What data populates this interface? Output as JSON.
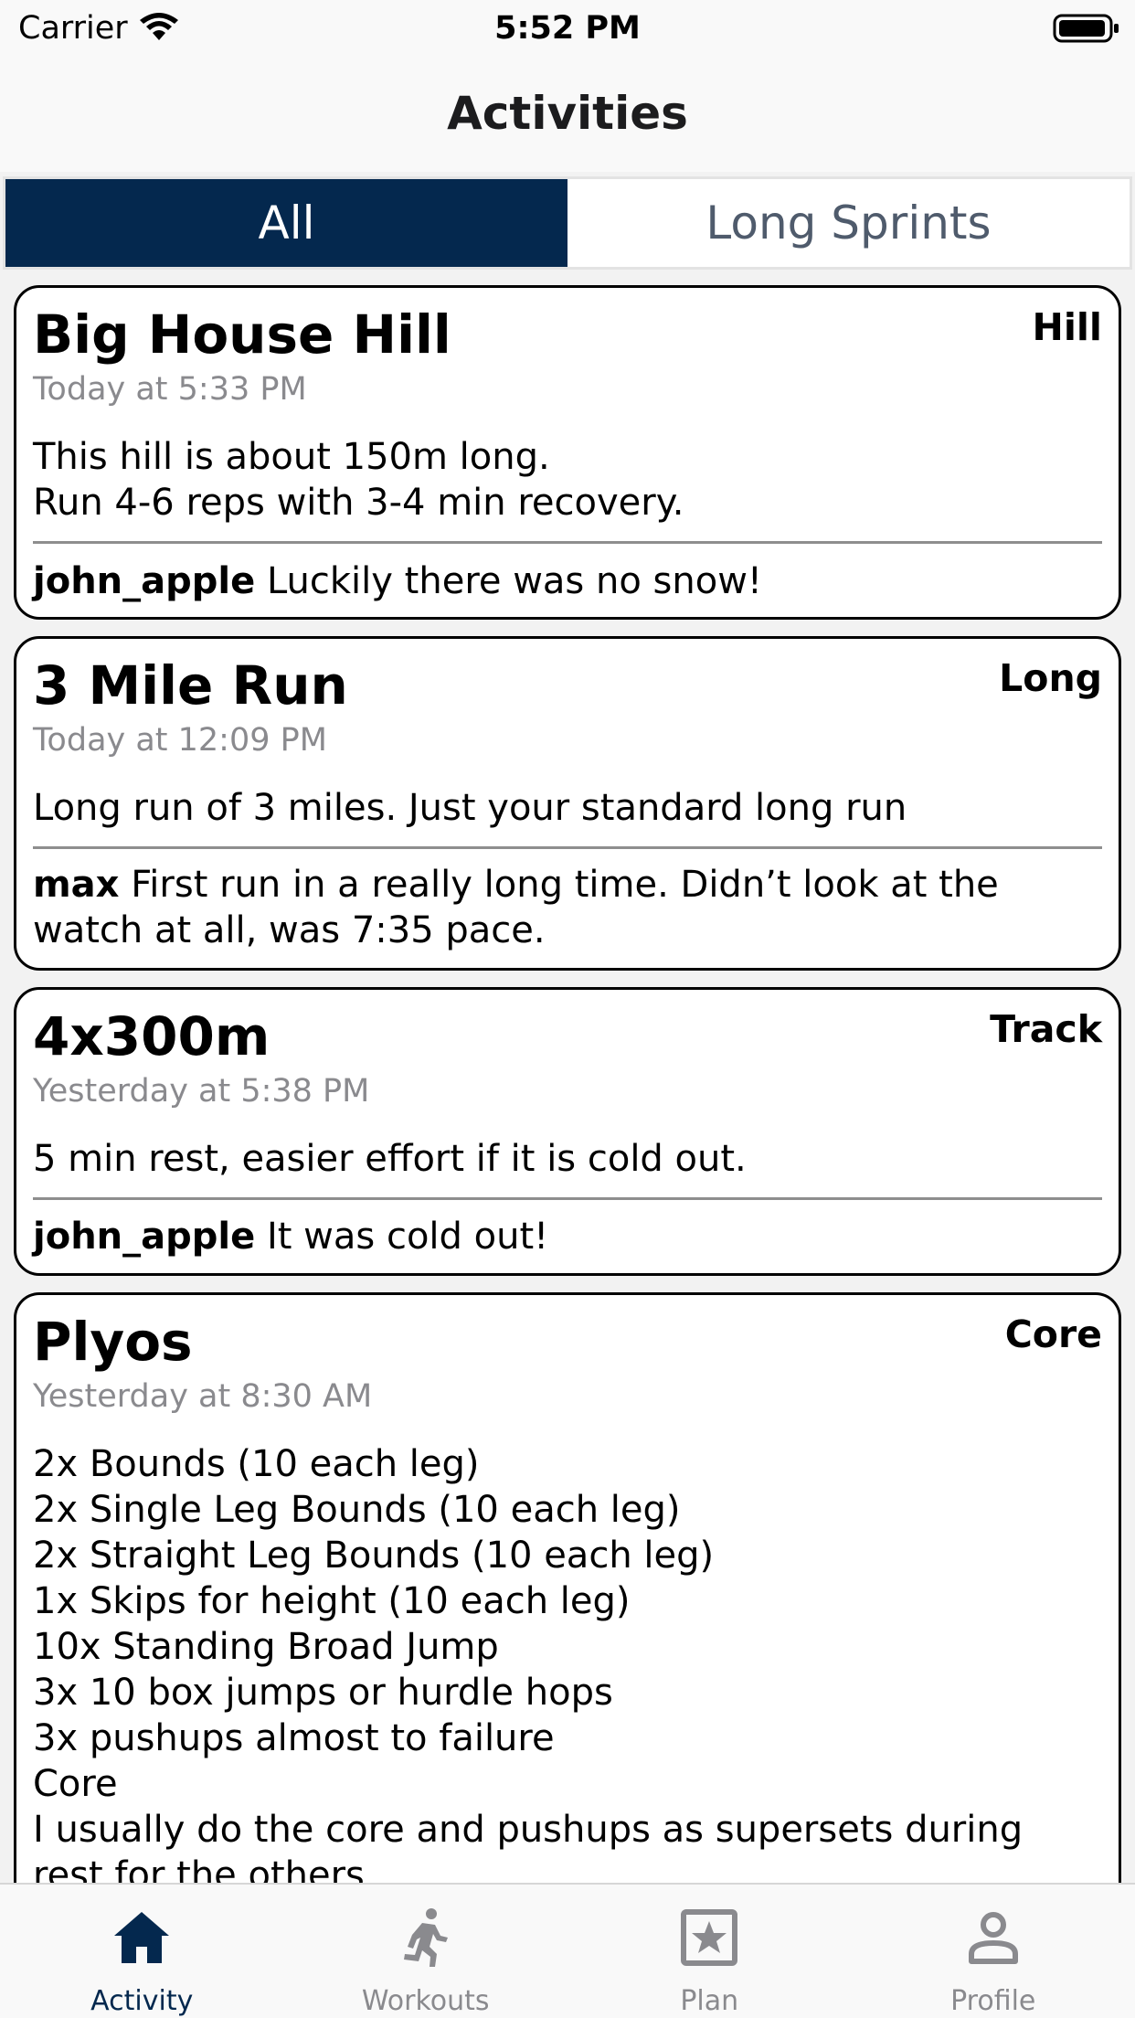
{
  "status_bar": {
    "carrier": "Carrier",
    "time": "5:52 PM"
  },
  "nav": {
    "title": "Activities"
  },
  "segments": [
    {
      "label": "All",
      "selected": true
    },
    {
      "label": "Long Sprints",
      "selected": false
    }
  ],
  "activities": [
    {
      "title": "Big House Hill",
      "tag": "Hill",
      "time": "Today at 5:33 PM",
      "description": "This hill is about 150m long.\nRun 4-6 reps with 3-4 min recovery.",
      "comment_user": "john_apple",
      "comment_text": "Luckily there was no snow!"
    },
    {
      "title": "3 Mile Run",
      "tag": "Long",
      "time": "Today at 12:09 PM",
      "description": "Long run of 3 miles. Just your standard long run",
      "comment_user": "max",
      "comment_text": "First run in a really long time. Didn’t look at the watch at all, was 7:35 pace."
    },
    {
      "title": "4x300m",
      "tag": "Track",
      "time": "Yesterday at 5:38 PM",
      "description": "5 min rest, easier effort if it is cold out.",
      "comment_user": "john_apple",
      "comment_text": "It was cold out!"
    },
    {
      "title": "Plyos",
      "tag": "Core",
      "time": "Yesterday at 8:30 AM",
      "description": "2x Bounds (10 each leg)\n2x Single Leg Bounds (10 each leg)\n2x Straight Leg Bounds (10 each leg)\n1x Skips for height (10 each leg)\n10x Standing Broad Jump\n3x 10 box jumps or hurdle hops\n3x pushups almost to failure\nCore\nI usually do the core and pushups as supersets during rest for the others"
    }
  ],
  "tab_bar": [
    {
      "label": "Activity",
      "icon": "home-icon",
      "active": true
    },
    {
      "label": "Workouts",
      "icon": "runner-icon",
      "active": false
    },
    {
      "label": "Plan",
      "icon": "star-calendar-icon",
      "active": false
    },
    {
      "label": "Profile",
      "icon": "person-icon",
      "active": false
    }
  ],
  "colors": {
    "accent": "#04284e",
    "inactive": "#8a8a8e"
  }
}
